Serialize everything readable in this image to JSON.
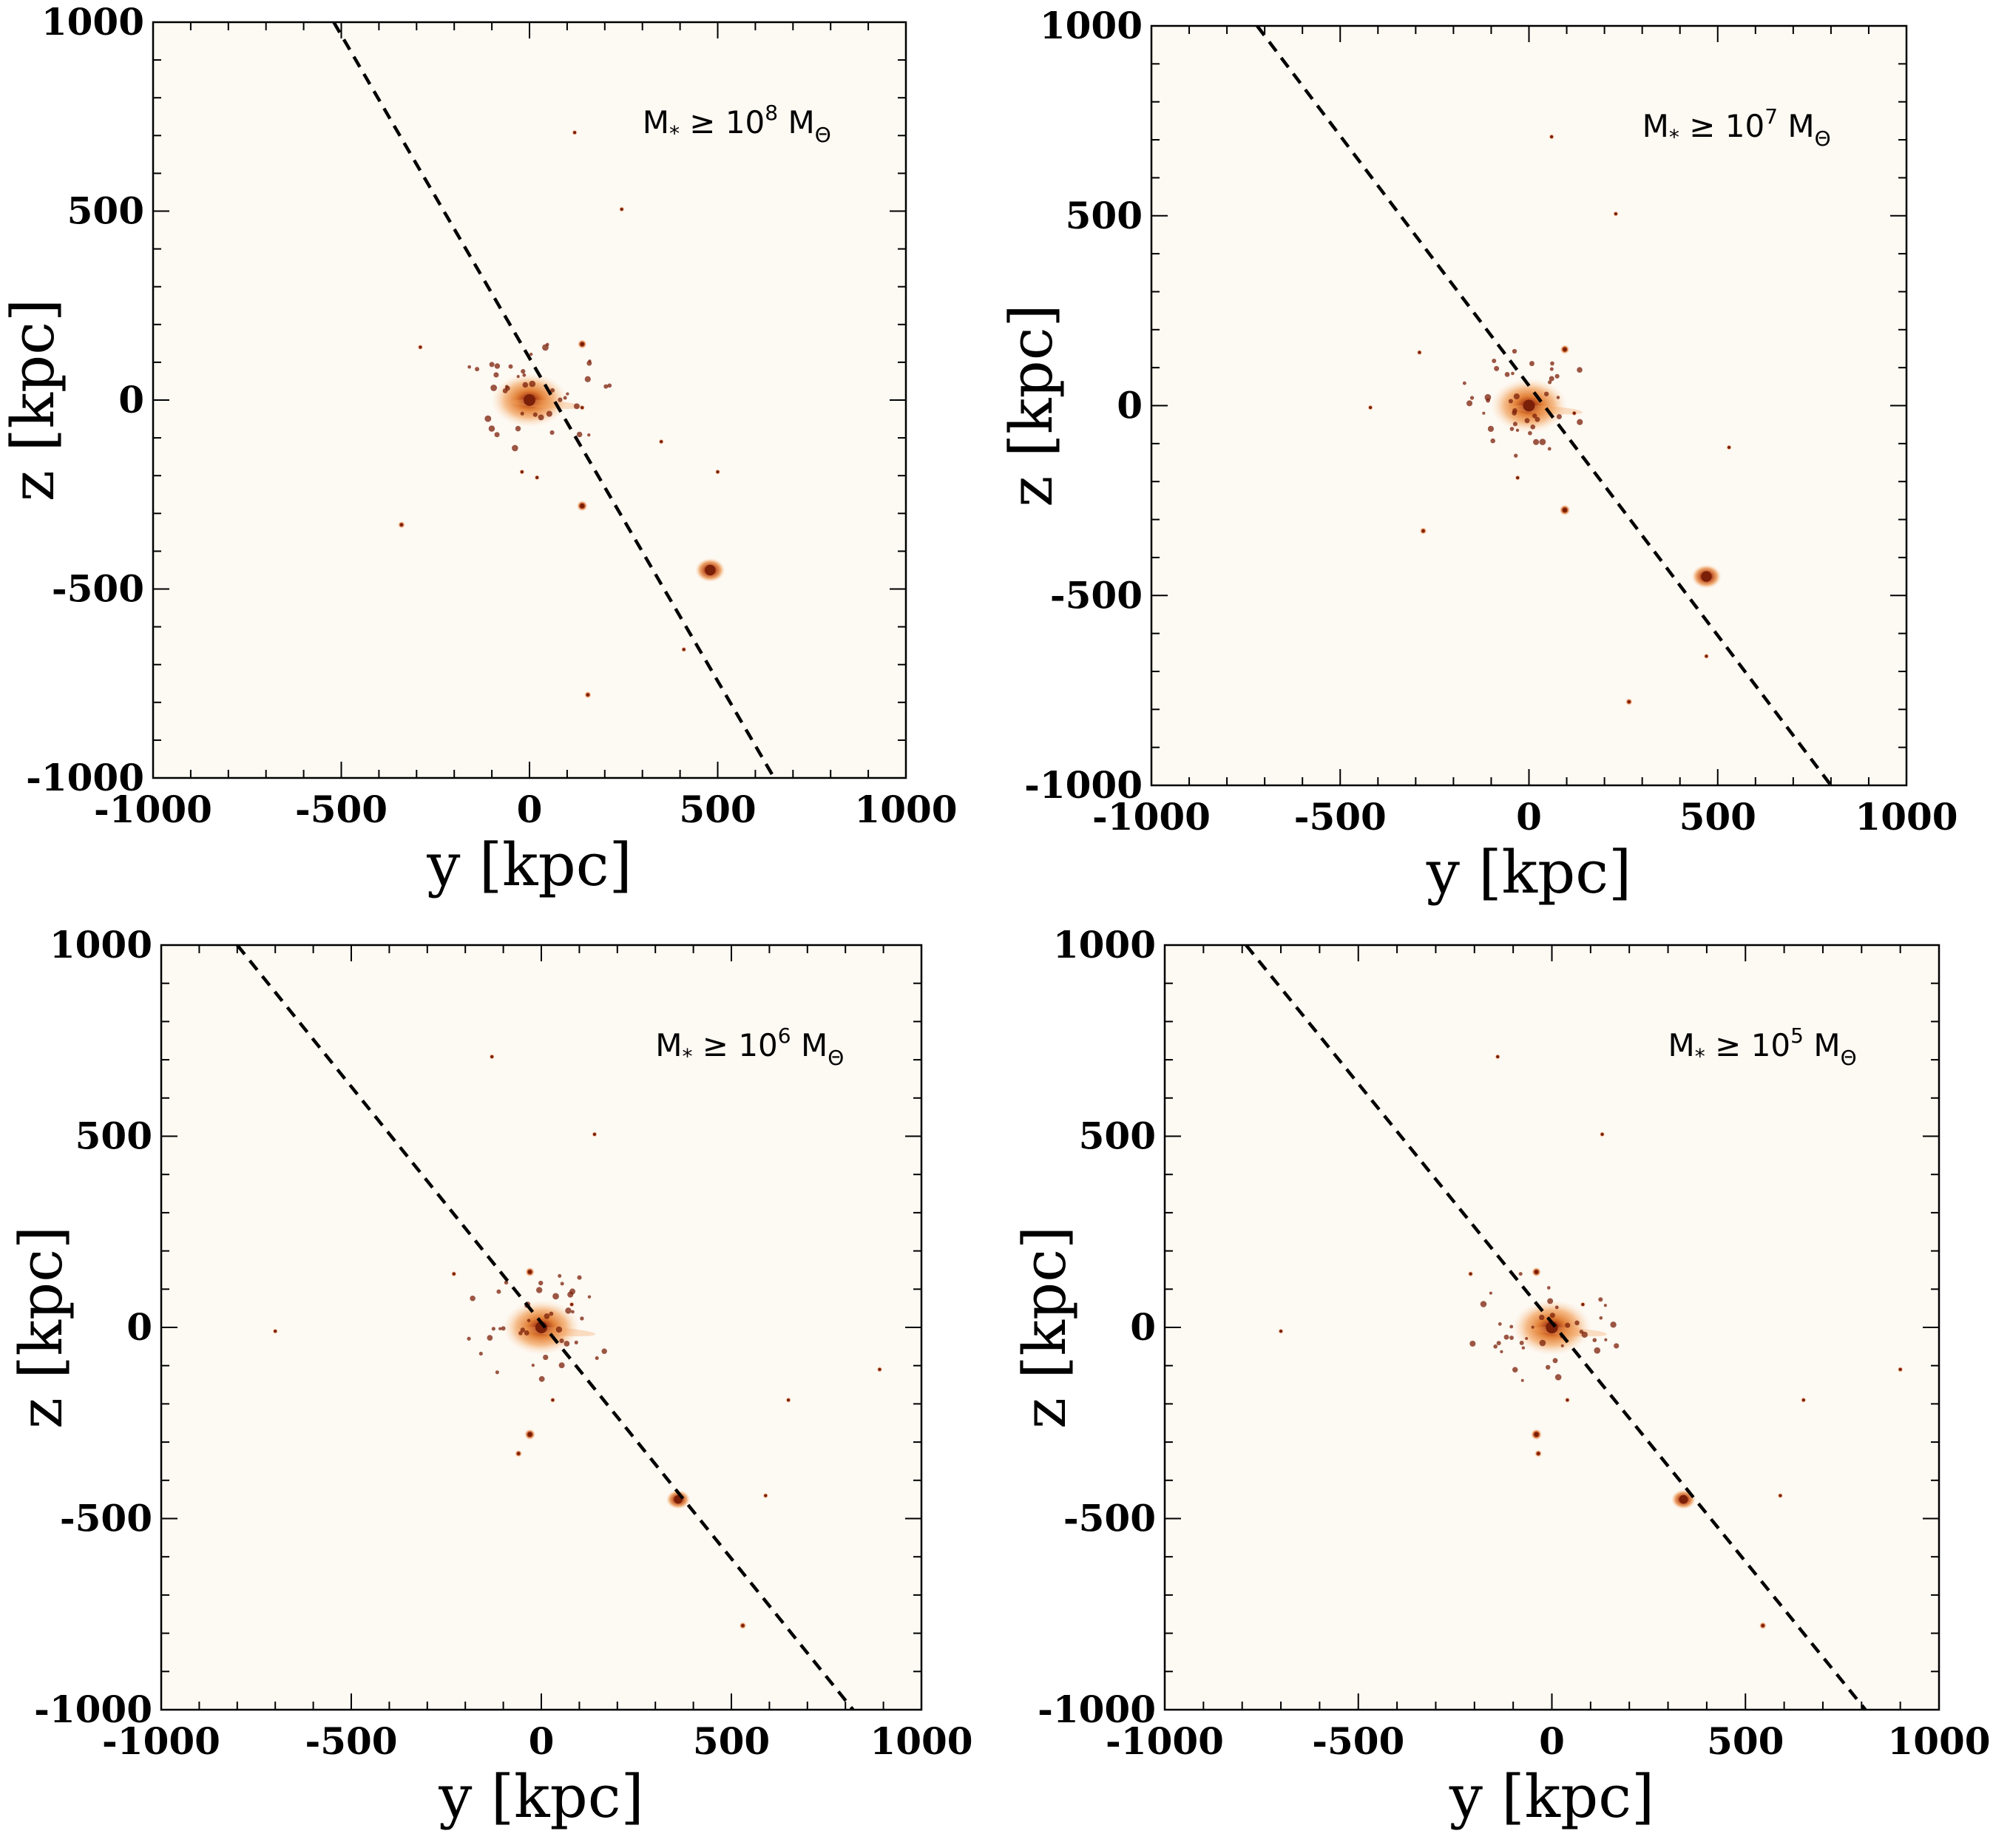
{
  "chart_data": [
    {
      "type": "scatter",
      "label": {
        "prefix": "M",
        "sub_star": "*",
        "relation": "≥ 10",
        "exponent": "8",
        "unit": "M",
        "sub_sun": "Θ"
      },
      "xlabel": "y [kpc]",
      "ylabel": "z [kpc]",
      "xlim": [
        -1000,
        1000
      ],
      "ylim": [
        -1000,
        1000
      ],
      "xticks": [
        "-1000",
        "-500",
        "0",
        "500",
        "1000"
      ],
      "yticks": [
        "-1000",
        "-500",
        "0",
        "500",
        "1000"
      ],
      "dashed_line": {
        "y1": -520,
        "z1": 1000,
        "y2": 650,
        "z2": -1000
      },
      "blobs": [
        {
          "y": 0,
          "z": 0,
          "size": 130,
          "kind": "central"
        },
        {
          "y": 480,
          "z": -450,
          "size": 40,
          "kind": "major"
        },
        {
          "y": 140,
          "z": -280,
          "size": 14,
          "kind": "minor"
        },
        {
          "y": -340,
          "z": -330,
          "size": 9,
          "kind": "minor"
        },
        {
          "y": 155,
          "z": -780,
          "size": 9,
          "kind": "minor"
        },
        {
          "y": 140,
          "z": 148,
          "size": 12,
          "kind": "minor"
        },
        {
          "y": -290,
          "z": 140,
          "size": 7,
          "kind": "minor"
        },
        {
          "y": 245,
          "z": 505,
          "size": 6,
          "kind": "minor"
        },
        {
          "y": 120,
          "z": 708,
          "size": 4,
          "kind": "minor"
        },
        {
          "y": 350,
          "z": -110,
          "size": 6,
          "kind": "minor"
        },
        {
          "y": -20,
          "z": -190,
          "size": 5,
          "kind": "minor"
        },
        {
          "y": 20,
          "z": -205,
          "size": 5,
          "kind": "minor"
        },
        {
          "y": 140,
          "z": -20,
          "size": 6,
          "kind": "minor"
        },
        {
          "y": 410,
          "z": -660,
          "size": 4,
          "kind": "minor"
        },
        {
          "y": 500,
          "z": -190,
          "size": 4,
          "kind": "minor"
        }
      ]
    },
    {
      "type": "scatter",
      "label": {
        "prefix": "M",
        "sub_star": "*",
        "relation": "≥ 10",
        "exponent": "7",
        "unit": "M",
        "sub_sun": "Θ"
      },
      "xlabel": "y [kpc]",
      "ylabel": "z [kpc]",
      "xlim": [
        -1000,
        1000
      ],
      "ylim": [
        -1000,
        1000
      ],
      "xticks": [
        "-1000",
        "-500",
        "0",
        "500",
        "1000"
      ],
      "yticks": [
        "-1000",
        "-500",
        "0",
        "500",
        "1000"
      ],
      "dashed_line": {
        "y1": -720,
        "z1": 1000,
        "y2": 800,
        "z2": -1000
      },
      "blobs": [
        {
          "y": 0,
          "z": 0,
          "size": 130,
          "kind": "central"
        },
        {
          "y": 470,
          "z": -450,
          "size": 40,
          "kind": "major"
        },
        {
          "y": 95,
          "z": -275,
          "size": 14,
          "kind": "minor"
        },
        {
          "y": -280,
          "z": -330,
          "size": 9,
          "kind": "minor"
        },
        {
          "y": 265,
          "z": -780,
          "size": 9,
          "kind": "minor"
        },
        {
          "y": 95,
          "z": 148,
          "size": 12,
          "kind": "minor"
        },
        {
          "y": -290,
          "z": 140,
          "size": 7,
          "kind": "minor"
        },
        {
          "y": 230,
          "z": 505,
          "size": 6,
          "kind": "minor"
        },
        {
          "y": 60,
          "z": 708,
          "size": 4,
          "kind": "minor"
        },
        {
          "y": 530,
          "z": -110,
          "size": 6,
          "kind": "minor"
        },
        {
          "y": -420,
          "z": -5,
          "size": 4,
          "kind": "minor"
        },
        {
          "y": 120,
          "z": -20,
          "size": 6,
          "kind": "minor"
        },
        {
          "y": -30,
          "z": -190,
          "size": 5,
          "kind": "minor"
        },
        {
          "y": 470,
          "z": -660,
          "size": 4,
          "kind": "minor"
        }
      ]
    },
    {
      "type": "scatter",
      "label": {
        "prefix": "M",
        "sub_star": "*",
        "relation": "≥ 10",
        "exponent": "6",
        "unit": "M",
        "sub_sun": "Θ"
      },
      "xlabel": "y [kpc]",
      "ylabel": "z [kpc]",
      "xlim": [
        -1000,
        1000
      ],
      "ylim": [
        -1000,
        1000
      ],
      "xticks": [
        "-1000",
        "-500",
        "0",
        "500",
        "1000"
      ],
      "yticks": [
        "-1000",
        "-500",
        "0",
        "500",
        "1000"
      ],
      "dashed_line": {
        "y1": -800,
        "z1": 1000,
        "y2": 820,
        "z2": -1000
      },
      "blobs": [
        {
          "y": 0,
          "z": 0,
          "size": 130,
          "kind": "central"
        },
        {
          "y": 360,
          "z": -450,
          "size": 32,
          "kind": "major"
        },
        {
          "y": -30,
          "z": -280,
          "size": 14,
          "kind": "minor"
        },
        {
          "y": -60,
          "z": -330,
          "size": 9,
          "kind": "minor"
        },
        {
          "y": 530,
          "z": -780,
          "size": 9,
          "kind": "minor"
        },
        {
          "y": -30,
          "z": 145,
          "size": 12,
          "kind": "minor"
        },
        {
          "y": -230,
          "z": 140,
          "size": 7,
          "kind": "minor"
        },
        {
          "y": 140,
          "z": 505,
          "size": 6,
          "kind": "minor"
        },
        {
          "y": -130,
          "z": 708,
          "size": 4,
          "kind": "minor"
        },
        {
          "y": 890,
          "z": -110,
          "size": 7,
          "kind": "minor"
        },
        {
          "y": -700,
          "z": -10,
          "size": 4,
          "kind": "minor"
        },
        {
          "y": 590,
          "z": -440,
          "size": 6,
          "kind": "minor"
        },
        {
          "y": 80,
          "z": 60,
          "size": 6,
          "kind": "minor"
        },
        {
          "y": 30,
          "z": -190,
          "size": 5,
          "kind": "minor"
        },
        {
          "y": 650,
          "z": -190,
          "size": 4,
          "kind": "minor"
        }
      ]
    },
    {
      "type": "scatter",
      "label": {
        "prefix": "M",
        "sub_star": "*",
        "relation": "≥ 10",
        "exponent": "5",
        "unit": "M",
        "sub_sun": "Θ"
      },
      "xlabel": "y [kpc]",
      "ylabel": "z [kpc]",
      "xlim": [
        -1000,
        1000
      ],
      "ylim": [
        -1000,
        1000
      ],
      "xticks": [
        "-1000",
        "-500",
        "0",
        "500",
        "1000"
      ],
      "yticks": [
        "-1000",
        "-500",
        "0",
        "500",
        "1000"
      ],
      "dashed_line": {
        "y1": -790,
        "z1": 1000,
        "y2": 810,
        "z2": -1000
      },
      "blobs": [
        {
          "y": 0,
          "z": 0,
          "size": 130,
          "kind": "central"
        },
        {
          "y": 340,
          "z": -450,
          "size": 32,
          "kind": "major"
        },
        {
          "y": -40,
          "z": -280,
          "size": 14,
          "kind": "minor"
        },
        {
          "y": -35,
          "z": -330,
          "size": 9,
          "kind": "minor"
        },
        {
          "y": 545,
          "z": -780,
          "size": 9,
          "kind": "minor"
        },
        {
          "y": -40,
          "z": 145,
          "size": 12,
          "kind": "minor"
        },
        {
          "y": -210,
          "z": 140,
          "size": 7,
          "kind": "minor"
        },
        {
          "y": 130,
          "z": 505,
          "size": 6,
          "kind": "minor"
        },
        {
          "y": -140,
          "z": 708,
          "size": 4,
          "kind": "minor"
        },
        {
          "y": 900,
          "z": -110,
          "size": 7,
          "kind": "minor"
        },
        {
          "y": -700,
          "z": -10,
          "size": 4,
          "kind": "minor"
        },
        {
          "y": 590,
          "z": -440,
          "size": 6,
          "kind": "minor"
        },
        {
          "y": 80,
          "z": 60,
          "size": 6,
          "kind": "minor"
        },
        {
          "y": 40,
          "z": -190,
          "size": 5,
          "kind": "minor"
        },
        {
          "y": 650,
          "z": -190,
          "size": 4,
          "kind": "minor"
        }
      ]
    }
  ],
  "colors": {
    "background": "#ffffff",
    "plot_bg": "#fdf9f3",
    "halo": "#f3a765",
    "core": "#7a1f08",
    "mid": "#d8681f",
    "line": "#000000"
  }
}
